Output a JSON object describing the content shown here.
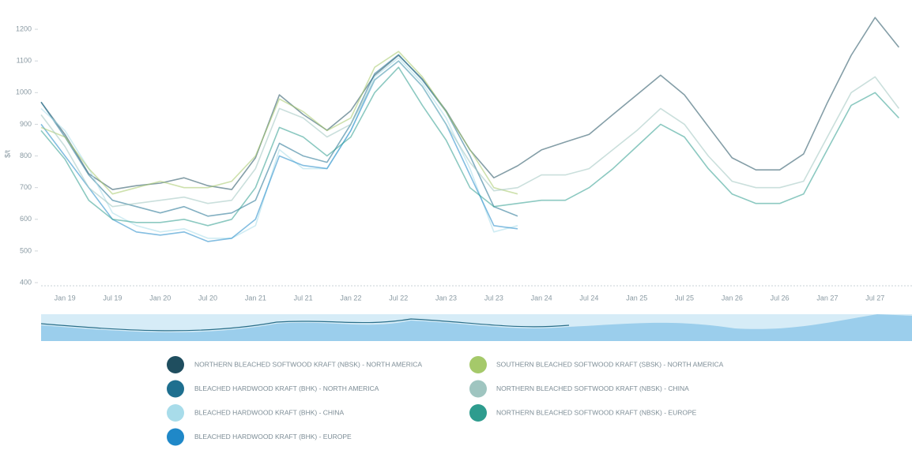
{
  "chart_data": {
    "type": "line",
    "y_label": "$/t",
    "categories": [
      null,
      "Jan 19",
      null,
      "Jul 19",
      null,
      "Jan 20",
      null,
      "Jul 20",
      null,
      "Jan 21",
      null,
      "Jul 21",
      null,
      "Jan 22",
      null,
      "Jul 22",
      null,
      "Jan 23",
      null,
      "Jul 23",
      null,
      "Jan 24",
      null,
      "Jul 24",
      null,
      "Jan 25",
      null,
      "Jul 25",
      null,
      "Jan 26",
      null,
      "Jul 26",
      null,
      "Jan 27",
      null,
      "Jul 27",
      null
    ],
    "ylim": [
      400,
      1270
    ],
    "yticks": [
      400,
      500,
      600,
      700,
      800,
      900,
      1000,
      1100,
      1200
    ],
    "grid": false,
    "series": [
      {
        "name": "NORTHERN BLEACHED SOFTWOOD KRAFT (NBSK) - NORTH AMERICA",
        "color": "#1f4e5f",
        "values": [
          970,
          868,
          744,
          694,
          706,
          714,
          731,
          706,
          694,
          794,
          993,
          931,
          881,
          943,
          1055,
          1118,
          1043,
          943,
          819,
          731,
          769,
          819,
          844,
          868,
          931,
          993,
          1055,
          993,
          893,
          794,
          756,
          756,
          806,
          968,
          1118,
          1237,
          1143
        ]
      },
      {
        "name": "BLEACHED HARDWOOD KRAFT (BHK) - NORTH AMERICA",
        "color": "#1e6f8f",
        "values": [
          970,
          860,
          740,
          660,
          640,
          620,
          640,
          610,
          620,
          660,
          840,
          800,
          780,
          900,
          1060,
          1120,
          1040,
          940,
          800,
          640,
          610,
          null,
          null,
          null,
          null,
          null,
          null,
          null,
          null,
          null,
          null,
          null,
          null,
          null,
          null,
          null,
          null
        ]
      },
      {
        "name": "BLEACHED HARDWOOD KRAFT (BHK) - CHINA",
        "color": "#a8dcea",
        "values": [
          950,
          880,
          760,
          620,
          580,
          560,
          570,
          540,
          540,
          580,
          820,
          760,
          760,
          880,
          1050,
          1110,
          1030,
          920,
          760,
          560,
          580,
          null,
          null,
          null,
          null,
          null,
          null,
          null,
          null,
          null,
          null,
          null,
          null,
          null,
          null,
          null,
          null
        ]
      },
      {
        "name": "BLEACHED HARDWOOD KRAFT (BHK) - EUROPE",
        "color": "#1f88c8",
        "values": [
          900,
          800,
          700,
          600,
          560,
          550,
          560,
          530,
          540,
          600,
          800,
          770,
          760,
          880,
          1040,
          1100,
          1020,
          900,
          740,
          580,
          570,
          null,
          null,
          null,
          null,
          null,
          null,
          null,
          null,
          null,
          null,
          null,
          null,
          null,
          null,
          null,
          null
        ]
      },
      {
        "name": "SOUTHERN BLEACHED SOFTWOOD KRAFT (SBSK) - NORTH AMERICA",
        "color": "#a5c96a",
        "values": [
          890,
          860,
          760,
          680,
          700,
          720,
          700,
          700,
          720,
          800,
          980,
          940,
          880,
          920,
          1080,
          1130,
          1050,
          940,
          820,
          700,
          680,
          null,
          null,
          null,
          null,
          null,
          null,
          null,
          null,
          null,
          null,
          null,
          null,
          null,
          null,
          null,
          null
        ]
      },
      {
        "name": "NORTHERN BLEACHED SOFTWOOD KRAFT (NBSK) - CHINA",
        "color": "#9fc5c0",
        "values": [
          930,
          830,
          700,
          640,
          650,
          660,
          670,
          650,
          660,
          760,
          950,
          920,
          860,
          900,
          1040,
          1100,
          1020,
          900,
          780,
          690,
          700,
          740,
          740,
          760,
          820,
          880,
          950,
          900,
          800,
          720,
          700,
          700,
          720,
          860,
          1000,
          1050,
          950
        ]
      },
      {
        "name": "NORTHERN BLEACHED SOFTWOOD KRAFT (NBSK) - EUROPE",
        "color": "#2e9c8e",
        "values": [
          880,
          790,
          660,
          600,
          590,
          590,
          600,
          580,
          600,
          700,
          890,
          860,
          800,
          860,
          1000,
          1080,
          960,
          850,
          700,
          640,
          650,
          660,
          660,
          700,
          760,
          830,
          900,
          860,
          760,
          680,
          650,
          650,
          680,
          820,
          960,
          1000,
          920
        ]
      }
    ]
  }
}
